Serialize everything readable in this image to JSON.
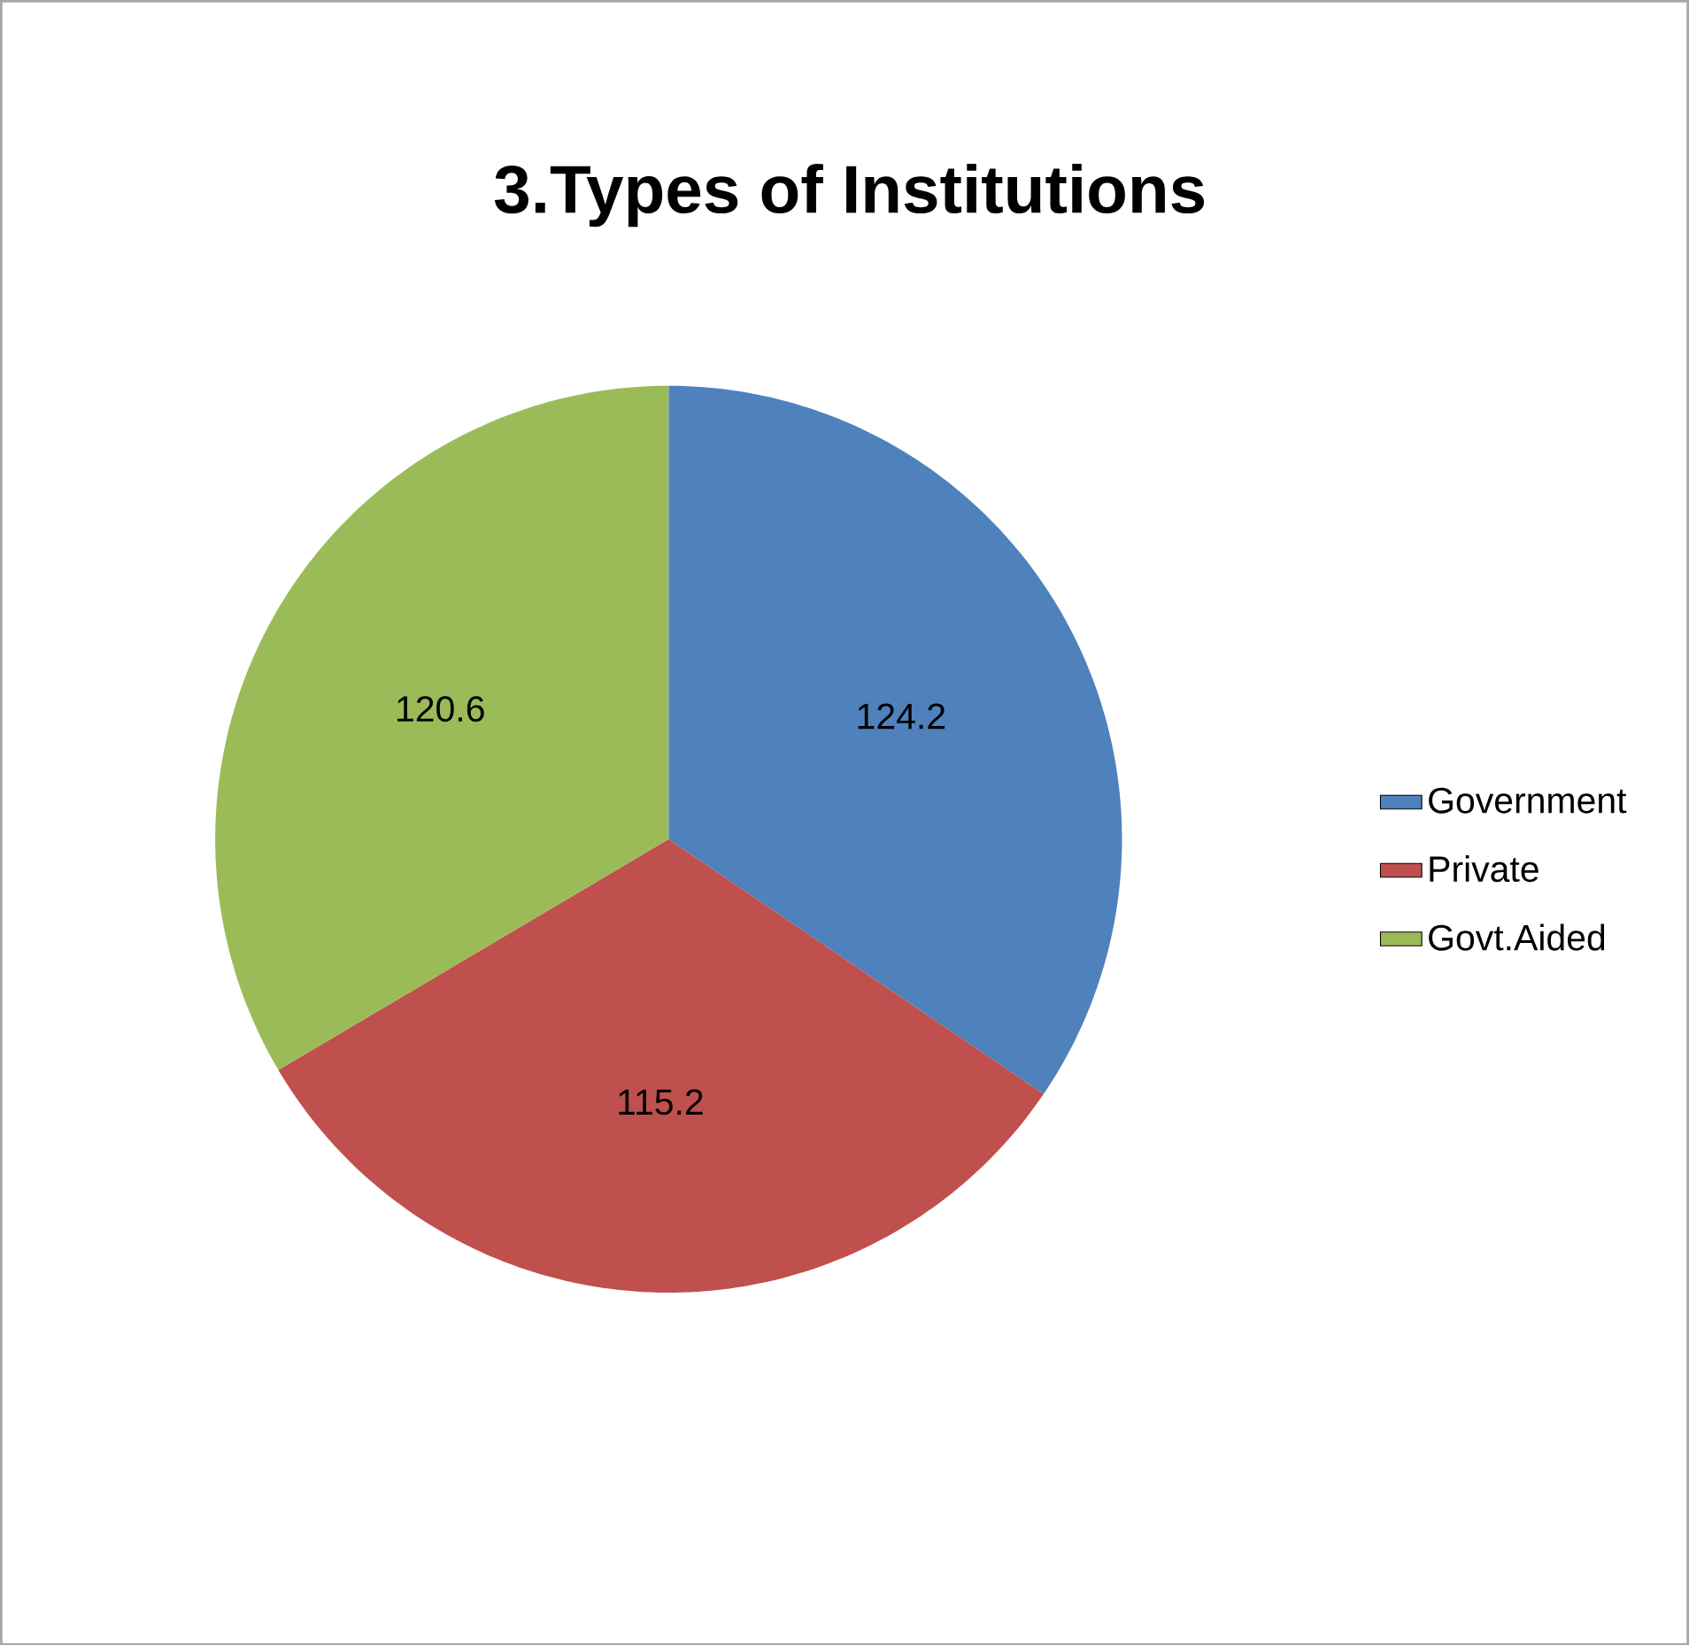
{
  "chart_data": {
    "type": "pie",
    "title": "3.Types of Institutions",
    "categories": [
      "Government",
      "Private",
      "Govt.Aided"
    ],
    "values": [
      124.2,
      115.2,
      120.6
    ],
    "colors": [
      "#4f81bd",
      "#c0504d",
      "#9bbb59"
    ],
    "data_labels": true,
    "legend": "right"
  }
}
